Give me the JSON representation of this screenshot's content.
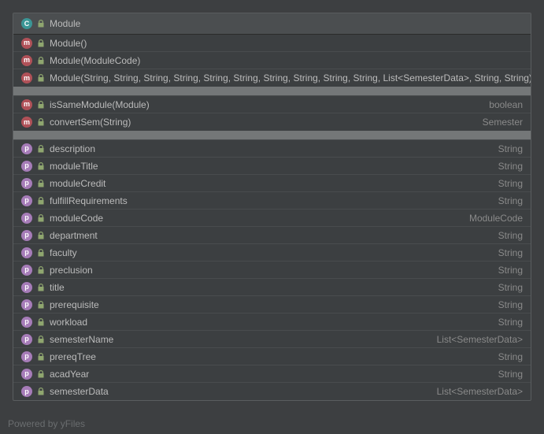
{
  "className": "Module",
  "classIconLetter": "C",
  "constructors": [
    {
      "label": "Module()"
    },
    {
      "label": "Module(ModuleCode)"
    },
    {
      "label": "Module(String, String, String, String, String, String, String, String, String, String, List<SemesterData>, String, String)"
    }
  ],
  "methods": [
    {
      "label": "isSameModule(Module)",
      "type": "boolean"
    },
    {
      "label": "convertSem(String)",
      "type": "Semester"
    }
  ],
  "fields": [
    {
      "label": "description",
      "type": "String"
    },
    {
      "label": "moduleTitle",
      "type": "String"
    },
    {
      "label": "moduleCredit",
      "type": "String"
    },
    {
      "label": "fulfillRequirements",
      "type": "String"
    },
    {
      "label": "moduleCode",
      "type": "ModuleCode"
    },
    {
      "label": "department",
      "type": "String"
    },
    {
      "label": "faculty",
      "type": "String"
    },
    {
      "label": "preclusion",
      "type": "String"
    },
    {
      "label": "title",
      "type": "String"
    },
    {
      "label": "prerequisite",
      "type": "String"
    },
    {
      "label": "workload",
      "type": "String"
    },
    {
      "label": "semesterName",
      "type": "List<SemesterData>"
    },
    {
      "label": "prereqTree",
      "type": "String"
    },
    {
      "label": "acadYear",
      "type": "String"
    },
    {
      "label": "semesterData",
      "type": "List<SemesterData>"
    }
  ],
  "footer": "Powered by yFiles",
  "icons": {
    "methodLetter": "m",
    "fieldLetter": "p"
  },
  "colors": {
    "lockFill": "#8fa66f"
  }
}
